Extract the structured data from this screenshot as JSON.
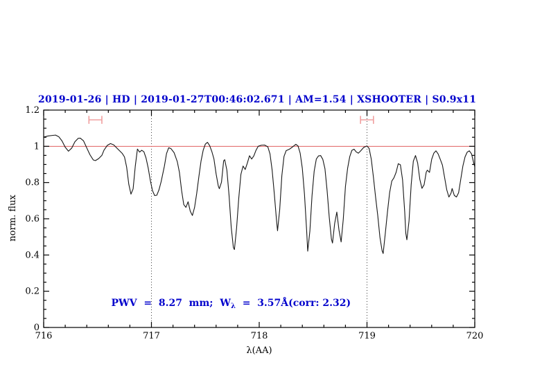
{
  "colors": {
    "title_blue": "#0202cc",
    "annotation_blue": "#0202cc",
    "continuum_red": "#e05f5f",
    "marker_pink": "#f09f9f",
    "curve_black": "#151515",
    "frame_black": "#000000",
    "dotted_line": "#3c3c3c"
  },
  "annotation": {
    "prefix": "PWV  =  8.27  mm;  W",
    "subscript": "λ",
    "suffix": "  =  3.57Å(corr: 2.32)"
  },
  "chart_data": {
    "type": "line",
    "title": "2019-01-26 | HD | 2019-01-27T00:46:02.671 | AM=1.54 | XSHOOTER | S0.9x11",
    "xlabel": "λ(AA)",
    "ylabel": "norm. flux",
    "xlim": [
      716,
      720
    ],
    "ylim": [
      0,
      1.2
    ],
    "x_major_ticks": [
      716,
      717,
      718,
      719,
      720
    ],
    "x_tick_labels": [
      "716",
      "717",
      "718",
      "719",
      "720"
    ],
    "x_minor_tick_step": 0.2,
    "y_major_ticks": [
      0,
      0.2,
      0.4,
      0.6,
      0.8,
      1,
      1.2
    ],
    "y_tick_labels": [
      "0",
      "0.2",
      "0.4",
      "0.6",
      "0.8",
      "1",
      "1.2"
    ],
    "y_minor_tick_step": 0.05,
    "grid": false,
    "legend": false,
    "annotation_text": "PWV = 8.27 mm; W_λ = 3.57Å(corr: 2.32)",
    "continuum_line_y": 1.0,
    "dotted_vlines_x": [
      717,
      719
    ],
    "band_markers": [
      {
        "x_center": 716.48,
        "x_half_width": 0.06,
        "y": 1.146,
        "cap_half_height": 0.022
      },
      {
        "x_center": 719.0,
        "x_half_width": 0.06,
        "y": 1.146,
        "cap_half_height": 0.022
      }
    ],
    "series": [
      {
        "name": "normalized telluric spectrum",
        "points": [
          [
            716.0,
            1.051
          ],
          [
            716.04,
            1.057
          ],
          [
            716.08,
            1.06
          ],
          [
            716.11,
            1.062
          ],
          [
            716.14,
            1.053
          ],
          [
            716.17,
            1.03
          ],
          [
            716.2,
            0.995
          ],
          [
            716.23,
            0.973
          ],
          [
            716.26,
            0.99
          ],
          [
            716.29,
            1.025
          ],
          [
            716.32,
            1.044
          ],
          [
            716.34,
            1.045
          ],
          [
            716.37,
            1.03
          ],
          [
            716.4,
            0.991
          ],
          [
            716.43,
            0.953
          ],
          [
            716.46,
            0.925
          ],
          [
            716.48,
            0.921
          ],
          [
            716.51,
            0.932
          ],
          [
            716.54,
            0.95
          ],
          [
            716.56,
            0.979
          ],
          [
            716.59,
            1.005
          ],
          [
            716.62,
            1.015
          ],
          [
            716.65,
            1.008
          ],
          [
            716.68,
            0.99
          ],
          [
            716.71,
            0.972
          ],
          [
            716.73,
            0.96
          ],
          [
            716.75,
            0.941
          ],
          [
            716.77,
            0.885
          ],
          [
            716.79,
            0.79
          ],
          [
            716.81,
            0.736
          ],
          [
            716.83,
            0.765
          ],
          [
            716.85,
            0.89
          ],
          [
            716.87,
            0.985
          ],
          [
            716.89,
            0.968
          ],
          [
            716.91,
            0.978
          ],
          [
            716.93,
            0.97
          ],
          [
            716.95,
            0.935
          ],
          [
            716.97,
            0.88
          ],
          [
            716.99,
            0.81
          ],
          [
            717.01,
            0.755
          ],
          [
            717.03,
            0.728
          ],
          [
            717.05,
            0.73
          ],
          [
            717.07,
            0.76
          ],
          [
            717.09,
            0.805
          ],
          [
            717.12,
            0.89
          ],
          [
            717.14,
            0.96
          ],
          [
            717.16,
            0.992
          ],
          [
            717.18,
            0.988
          ],
          [
            717.21,
            0.965
          ],
          [
            717.24,
            0.915
          ],
          [
            717.26,
            0.855
          ],
          [
            717.28,
            0.755
          ],
          [
            717.3,
            0.678
          ],
          [
            717.32,
            0.663
          ],
          [
            717.34,
            0.694
          ],
          [
            717.36,
            0.642
          ],
          [
            717.38,
            0.618
          ],
          [
            717.4,
            0.662
          ],
          [
            717.42,
            0.74
          ],
          [
            717.44,
            0.832
          ],
          [
            717.46,
            0.918
          ],
          [
            717.48,
            0.978
          ],
          [
            717.5,
            1.012
          ],
          [
            717.52,
            1.022
          ],
          [
            717.54,
            1.004
          ],
          [
            717.56,
            0.972
          ],
          [
            717.58,
            0.93
          ],
          [
            717.6,
            0.848
          ],
          [
            717.62,
            0.782
          ],
          [
            717.63,
            0.766
          ],
          [
            717.65,
            0.802
          ],
          [
            717.67,
            0.92
          ],
          [
            717.68,
            0.926
          ],
          [
            717.7,
            0.868
          ],
          [
            717.72,
            0.73
          ],
          [
            717.74,
            0.555
          ],
          [
            717.76,
            0.442
          ],
          [
            717.77,
            0.43
          ],
          [
            717.79,
            0.548
          ],
          [
            717.81,
            0.712
          ],
          [
            717.83,
            0.845
          ],
          [
            717.85,
            0.891
          ],
          [
            717.87,
            0.872
          ],
          [
            717.89,
            0.908
          ],
          [
            717.91,
            0.948
          ],
          [
            717.93,
            0.93
          ],
          [
            717.95,
            0.947
          ],
          [
            717.97,
            0.978
          ],
          [
            717.99,
            1.0
          ],
          [
            718.02,
            1.006
          ],
          [
            718.05,
            1.007
          ],
          [
            718.08,
            0.997
          ],
          [
            718.1,
            0.958
          ],
          [
            718.12,
            0.868
          ],
          [
            718.14,
            0.738
          ],
          [
            718.16,
            0.595
          ],
          [
            718.17,
            0.534
          ],
          [
            718.19,
            0.65
          ],
          [
            718.21,
            0.838
          ],
          [
            718.23,
            0.944
          ],
          [
            718.25,
            0.976
          ],
          [
            718.28,
            0.984
          ],
          [
            718.31,
            0.997
          ],
          [
            718.34,
            1.011
          ],
          [
            718.36,
            1.002
          ],
          [
            718.38,
            0.962
          ],
          [
            718.4,
            0.878
          ],
          [
            718.42,
            0.735
          ],
          [
            718.44,
            0.535
          ],
          [
            718.45,
            0.421
          ],
          [
            718.47,
            0.532
          ],
          [
            718.49,
            0.728
          ],
          [
            718.51,
            0.863
          ],
          [
            718.53,
            0.93
          ],
          [
            718.55,
            0.947
          ],
          [
            718.57,
            0.949
          ],
          [
            718.59,
            0.928
          ],
          [
            718.61,
            0.876
          ],
          [
            718.63,
            0.755
          ],
          [
            718.65,
            0.607
          ],
          [
            718.67,
            0.488
          ],
          [
            718.68,
            0.466
          ],
          [
            718.7,
            0.574
          ],
          [
            718.72,
            0.637
          ],
          [
            718.74,
            0.538
          ],
          [
            718.76,
            0.472
          ],
          [
            718.78,
            0.598
          ],
          [
            718.8,
            0.778
          ],
          [
            718.82,
            0.878
          ],
          [
            718.84,
            0.943
          ],
          [
            718.86,
            0.978
          ],
          [
            718.88,
            0.984
          ],
          [
            718.9,
            0.969
          ],
          [
            718.92,
            0.962
          ],
          [
            718.94,
            0.974
          ],
          [
            718.97,
            0.994
          ],
          [
            719.0,
            1.002
          ],
          [
            719.02,
            0.988
          ],
          [
            719.04,
            0.928
          ],
          [
            719.06,
            0.828
          ],
          [
            719.08,
            0.718
          ],
          [
            719.1,
            0.617
          ],
          [
            719.12,
            0.498
          ],
          [
            719.14,
            0.424
          ],
          [
            719.15,
            0.408
          ],
          [
            719.17,
            0.52
          ],
          [
            719.19,
            0.638
          ],
          [
            719.21,
            0.744
          ],
          [
            719.23,
            0.808
          ],
          [
            719.25,
            0.826
          ],
          [
            719.27,
            0.856
          ],
          [
            719.29,
            0.904
          ],
          [
            719.31,
            0.898
          ],
          [
            719.33,
            0.815
          ],
          [
            719.35,
            0.638
          ],
          [
            719.36,
            0.52
          ],
          [
            719.37,
            0.484
          ],
          [
            719.39,
            0.588
          ],
          [
            719.41,
            0.788
          ],
          [
            719.43,
            0.918
          ],
          [
            719.45,
            0.949
          ],
          [
            719.47,
            0.908
          ],
          [
            719.49,
            0.818
          ],
          [
            719.51,
            0.768
          ],
          [
            719.53,
            0.788
          ],
          [
            719.55,
            0.858
          ],
          [
            719.56,
            0.868
          ],
          [
            719.58,
            0.856
          ],
          [
            719.6,
            0.928
          ],
          [
            719.62,
            0.962
          ],
          [
            719.64,
            0.975
          ],
          [
            719.66,
            0.958
          ],
          [
            719.68,
            0.928
          ],
          [
            719.7,
            0.896
          ],
          [
            719.72,
            0.828
          ],
          [
            719.74,
            0.76
          ],
          [
            719.76,
            0.72
          ],
          [
            719.78,
            0.742
          ],
          [
            719.79,
            0.767
          ],
          [
            719.81,
            0.729
          ],
          [
            719.83,
            0.72
          ],
          [
            719.85,
            0.744
          ],
          [
            719.87,
            0.818
          ],
          [
            719.89,
            0.892
          ],
          [
            719.91,
            0.942
          ],
          [
            719.93,
            0.968
          ],
          [
            719.95,
            0.975
          ],
          [
            719.97,
            0.958
          ],
          [
            719.99,
            0.908
          ],
          [
            720.0,
            0.888
          ]
        ]
      }
    ]
  }
}
